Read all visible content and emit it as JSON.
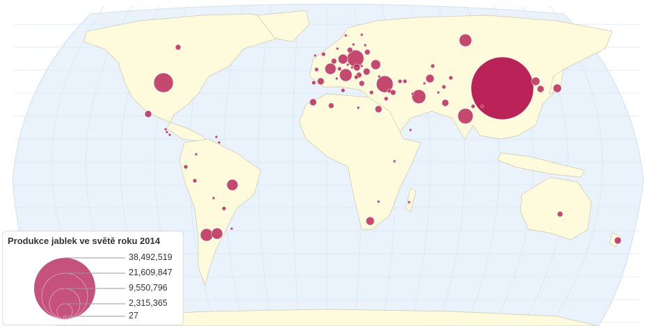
{
  "legend": {
    "title": "Produkce jablek ve světě roku 2014",
    "values": [
      "38,492,519",
      "21,609,847",
      "9,550,796",
      "2,315,365",
      "27"
    ]
  },
  "colors": {
    "ocean": "#eaf3fb",
    "land": "#fdfbdc",
    "border": "#c9c9b0",
    "bubble": "#b5174f",
    "legend_bubble": "#c5527b"
  }
}
